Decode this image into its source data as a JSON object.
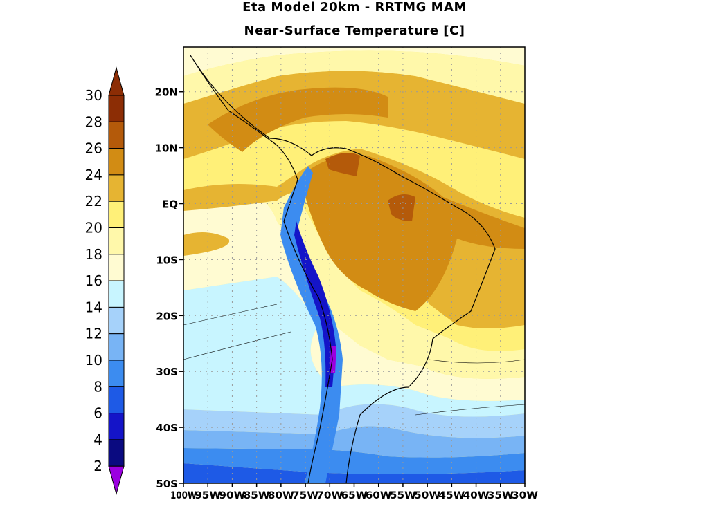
{
  "title": "Eta Model 20km - RRTMG MAM",
  "subtitle": "Near-Surface Temperature [C]",
  "colorbar": {
    "levels": [
      "2",
      "4",
      "6",
      "8",
      "10",
      "12",
      "14",
      "16",
      "18",
      "20",
      "22",
      "24",
      "26",
      "28",
      "30"
    ],
    "colors": [
      "#9b00e0",
      "#0a0a80",
      "#1414c8",
      "#1e5ae6",
      "#3c8cf0",
      "#78b4f5",
      "#a6d2fa",
      "#c8f5ff",
      "#fffbd2",
      "#fff8aa",
      "#fff078",
      "#e6b432",
      "#d28c14",
      "#b45a0a",
      "#8c2d05",
      "#8c2d05"
    ]
  },
  "lat_labels": [
    "20N",
    "10N",
    "EQ",
    "10S",
    "20S",
    "30S",
    "40S",
    "50S"
  ],
  "lon_labels": [
    "100W",
    "95W",
    "90W",
    "85W",
    "80W",
    "75W",
    "70W",
    "65W",
    "60W",
    "55W",
    "50W",
    "45W",
    "40W",
    "35W",
    "30W"
  ],
  "map": {
    "lon_range": [
      -100,
      -30
    ],
    "lat_range": [
      -50,
      28
    ],
    "grid": true
  }
}
